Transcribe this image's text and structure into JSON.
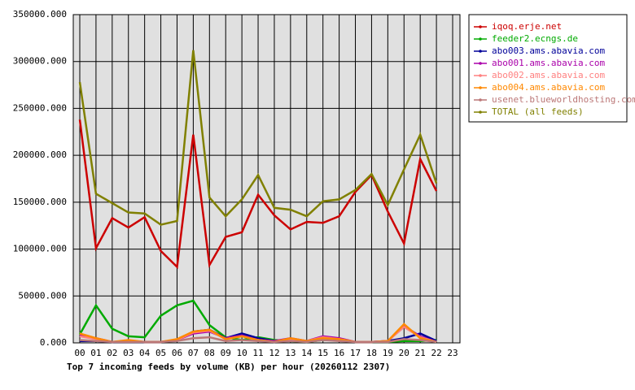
{
  "chart_data": {
    "type": "line",
    "title": "Top 7 incoming feeds by volume (KB) per hour (20260112 2307)",
    "categories": [
      "00",
      "01",
      "02",
      "03",
      "04",
      "05",
      "06",
      "07",
      "08",
      "09",
      "10",
      "11",
      "12",
      "13",
      "14",
      "15",
      "16",
      "17",
      "18",
      "19",
      "20",
      "21",
      "22",
      "23"
    ],
    "ylim": [
      0,
      350000
    ],
    "yticks": [
      {
        "value": 0,
        "label": "0.000"
      },
      {
        "value": 50000,
        "label": "50000.000"
      },
      {
        "value": 100000,
        "label": "100000.000"
      },
      {
        "value": 150000,
        "label": "150000.000"
      },
      {
        "value": 200000,
        "label": "200000.000"
      },
      {
        "value": 250000,
        "label": "250000.000"
      },
      {
        "value": 300000,
        "label": "300000.000"
      },
      {
        "value": 350000,
        "label": "350000.000"
      }
    ],
    "grid": true,
    "legend": "right",
    "series": [
      {
        "name": "iqoq.erje.net",
        "color": "#cc0000",
        "values": [
          238000,
          101000,
          133000,
          123000,
          134000,
          98000,
          81000,
          222000,
          83000,
          113000,
          118000,
          158000,
          136000,
          121000,
          129000,
          128000,
          135000,
          161000,
          179000,
          140000,
          106000,
          196000,
          162000,
          null
        ]
      },
      {
        "name": "feeder2.ecngs.de",
        "color": "#00aa00",
        "values": [
          9000,
          40000,
          15000,
          7000,
          6000,
          29000,
          40000,
          45000,
          19000,
          6000,
          3000,
          6000,
          3000,
          2000,
          1000,
          3000,
          3000,
          1000,
          1000,
          1000,
          2000,
          2000,
          3000,
          null
        ]
      },
      {
        "name": "abo003.ams.abavia.com",
        "color": "#000099",
        "values": [
          2000,
          2000,
          1000,
          1000,
          1000,
          1000,
          3000,
          12000,
          14000,
          5000,
          10000,
          5000,
          2000,
          2000,
          2000,
          5000,
          3000,
          1000,
          1000,
          2000,
          5000,
          10000,
          2000,
          null
        ]
      },
      {
        "name": "abo001.ams.abavia.com",
        "color": "#aa00aa",
        "values": [
          8000,
          5000,
          1000,
          2000,
          1000,
          1000,
          3000,
          10000,
          12000,
          5000,
          8000,
          3000,
          2000,
          5000,
          2000,
          7000,
          5000,
          1000,
          1000,
          2000,
          18000,
          7000,
          1000,
          null
        ]
      },
      {
        "name": "abo002.ams.abavia.com",
        "color": "#ff8080",
        "values": [
          7000,
          4000,
          1000,
          2000,
          1000,
          1000,
          3000,
          11000,
          13000,
          4000,
          7000,
          3000,
          1000,
          4000,
          2000,
          6000,
          4000,
          1000,
          1000,
          2000,
          17000,
          6000,
          1000,
          null
        ]
      },
      {
        "name": "abo004.ams.abavia.com",
        "color": "#ff8800",
        "values": [
          10000,
          5000,
          1000,
          3000,
          1000,
          1000,
          4000,
          12000,
          14000,
          4000,
          7000,
          3000,
          1000,
          5000,
          2000,
          5000,
          4000,
          1000,
          1000,
          2000,
          20000,
          5000,
          1000,
          null
        ]
      },
      {
        "name": "usenet.blueworldhosting.com",
        "color": "#bb7777",
        "values": [
          3000,
          2000,
          1000,
          1000,
          1000,
          1000,
          2000,
          5000,
          6000,
          2000,
          3000,
          2000,
          1000,
          2000,
          1000,
          3000,
          2000,
          1000,
          1000,
          1000,
          4000,
          3000,
          1000,
          null
        ]
      },
      {
        "name": "TOTAL (all feeds)",
        "color": "#808000",
        "values": [
          278000,
          159000,
          149000,
          139000,
          138000,
          126000,
          130000,
          312000,
          155000,
          135000,
          153000,
          179000,
          144000,
          142000,
          135000,
          151000,
          153000,
          163000,
          180000,
          147000,
          185000,
          222000,
          170000,
          null
        ]
      }
    ]
  }
}
